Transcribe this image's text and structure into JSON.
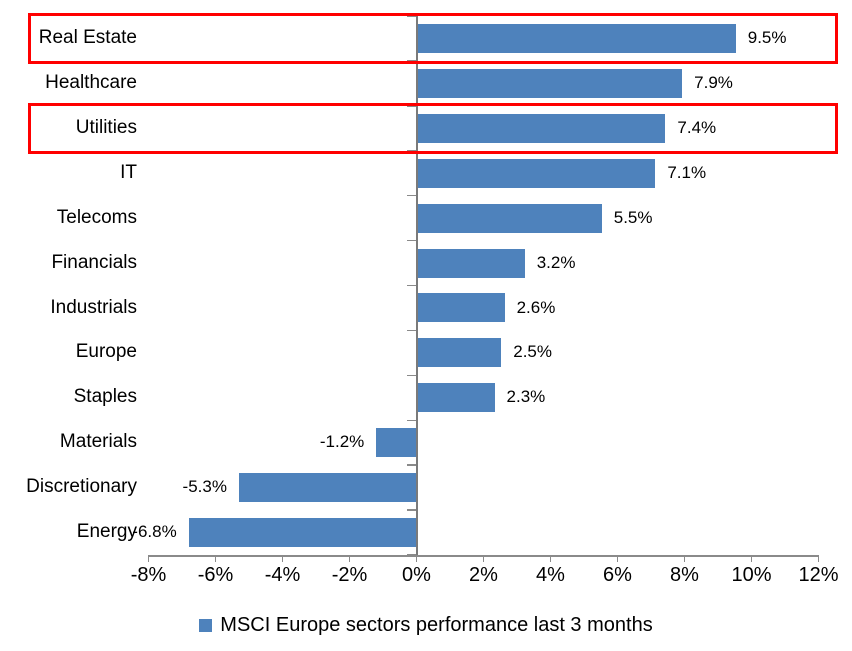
{
  "chart_data": {
    "type": "bar",
    "orientation": "horizontal",
    "legend": "MSCI Europe sectors performance last 3 months",
    "legend_position": "bottom-center",
    "categories": [
      "Real Estate",
      "Healthcare",
      "Utilities",
      "IT",
      "Telecoms",
      "Financials",
      "Industrials",
      "Europe",
      "Staples",
      "Materials",
      "Discretionary",
      "Energy"
    ],
    "values": [
      9.5,
      7.9,
      7.4,
      7.1,
      5.5,
      3.2,
      2.6,
      2.5,
      2.3,
      -1.2,
      -5.3,
      -6.8
    ],
    "data_labels": [
      "9.5%",
      "7.9%",
      "7.4%",
      "7.1%",
      "5.5%",
      "3.2%",
      "2.6%",
      "2.5%",
      "2.3%",
      "-1.2%",
      "-5.3%",
      "-6.8%"
    ],
    "x_tick_labels": [
      "-8%",
      "-6%",
      "-4%",
      "-2%",
      "0%",
      "2%",
      "4%",
      "6%",
      "8%",
      "10%",
      "12%"
    ],
    "x_tick_values": [
      -8,
      -6,
      -4,
      -2,
      0,
      2,
      4,
      6,
      8,
      10,
      12
    ],
    "xlim": [
      -8,
      12
    ],
    "grid": false,
    "highlighted_categories": [
      "Real Estate",
      "Utilities"
    ],
    "colors": {
      "bar": "#4E82BC",
      "highlight_box": "#FF0000",
      "axis": "#8A8A8A",
      "text": "#000000",
      "background": "#FFFFFF"
    }
  }
}
